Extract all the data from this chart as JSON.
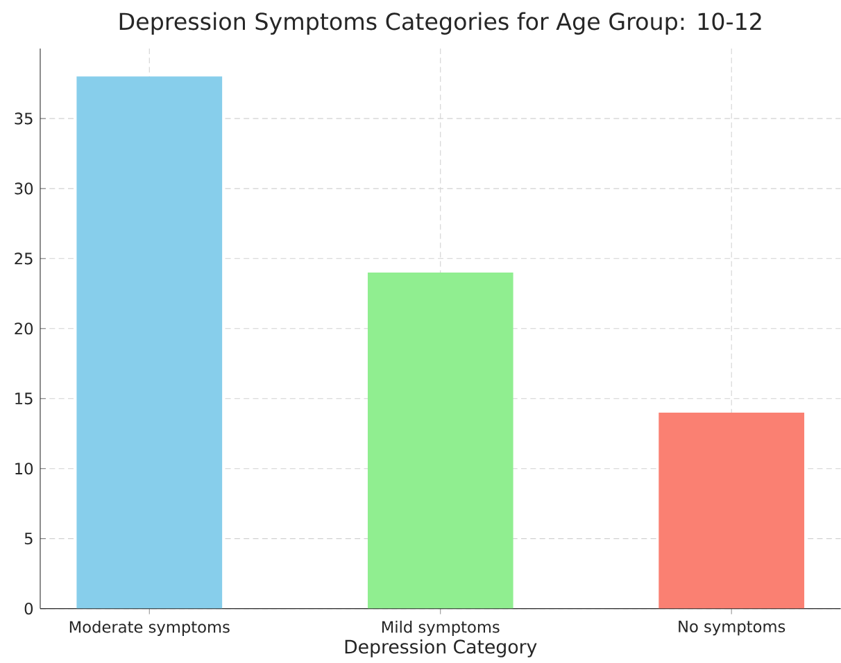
{
  "chart_data": {
    "type": "bar",
    "title": "Depression Symptoms Categories for Age Group: 10-12",
    "xlabel": "Depression Category",
    "categories": [
      "Moderate symptoms",
      "Mild symptoms",
      "No symptoms"
    ],
    "values": [
      38,
      24,
      14
    ],
    "colors": [
      "#87ceeb",
      "#90ee90",
      "#fa8072"
    ],
    "ylim": [
      0,
      40
    ],
    "yticks": [
      0,
      5,
      10,
      15,
      20,
      25,
      30,
      35
    ],
    "grid": true
  }
}
